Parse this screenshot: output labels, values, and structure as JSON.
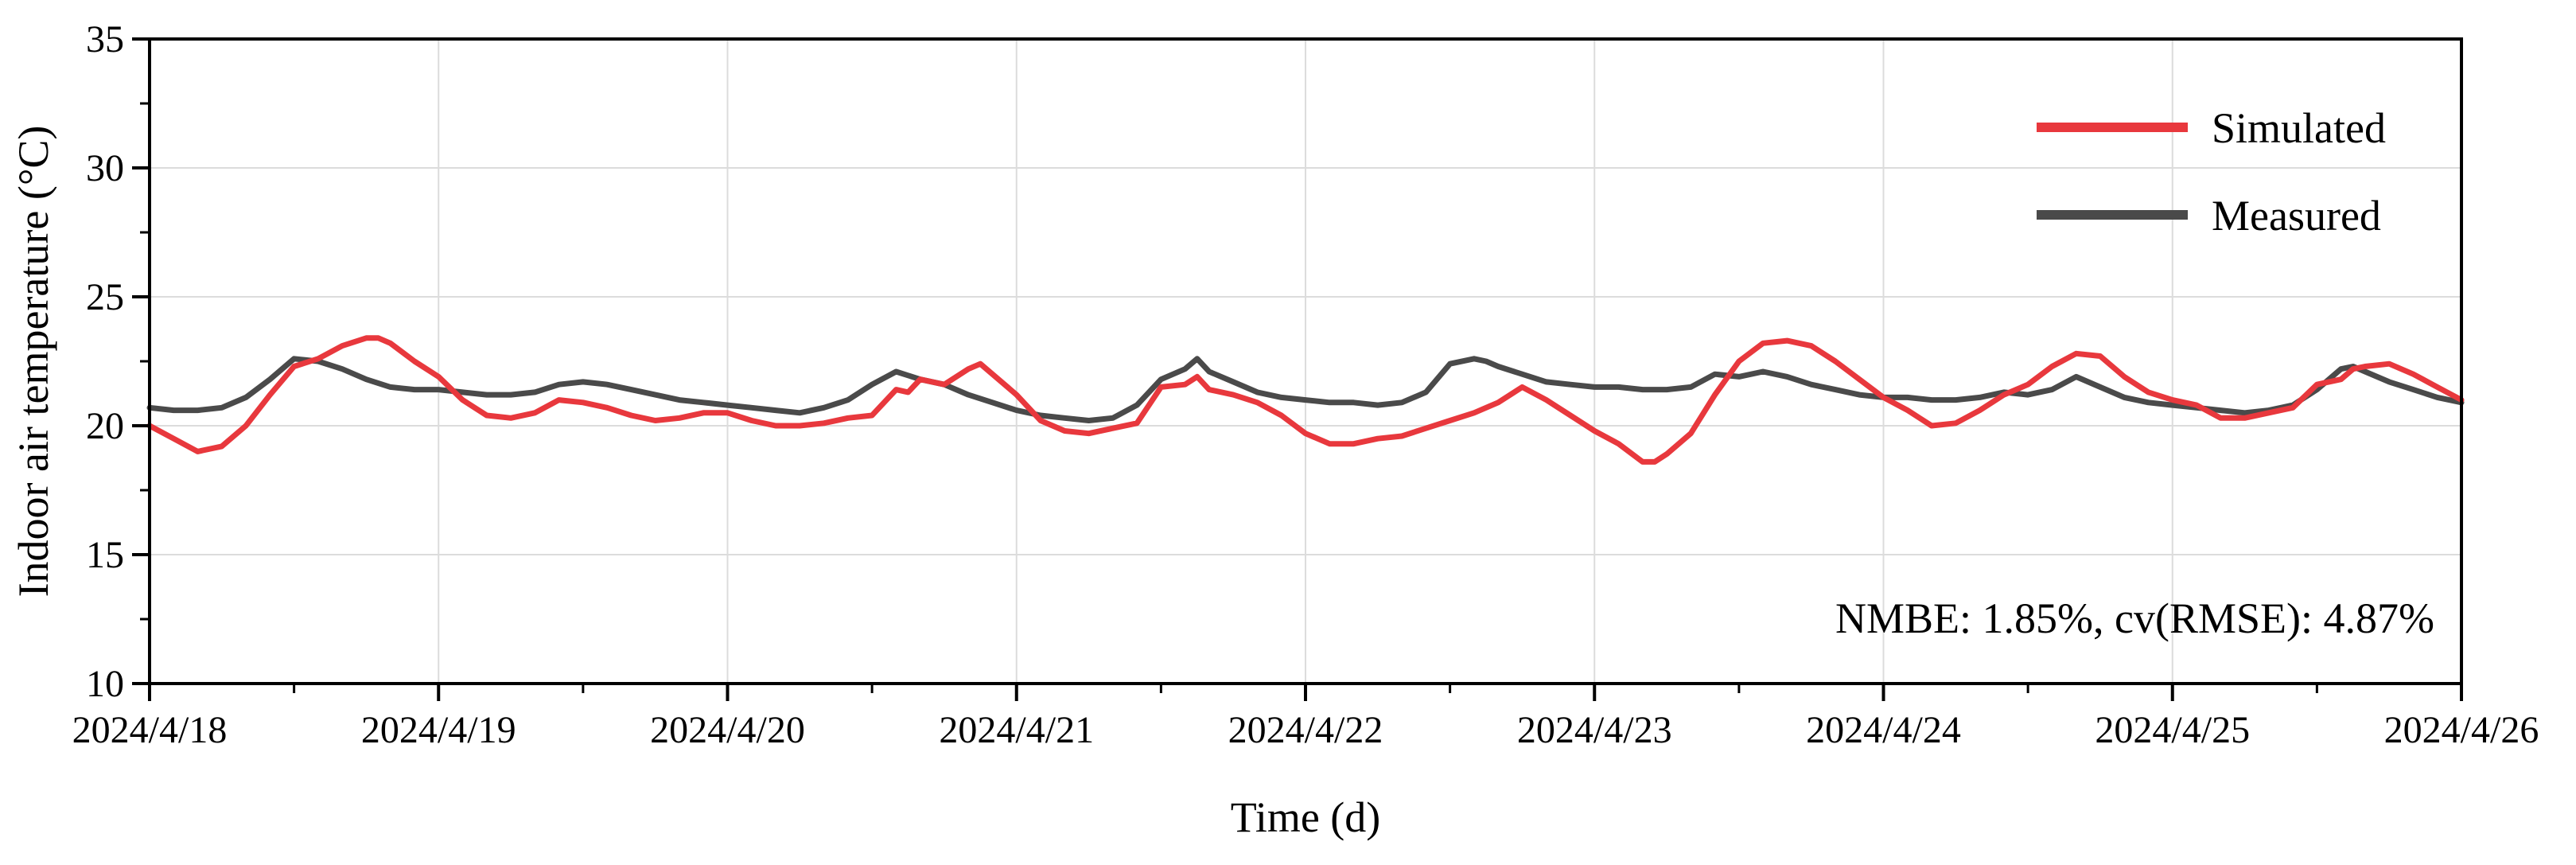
{
  "chart_data": {
    "type": "line",
    "title": "",
    "xlabel": "Time (d)",
    "ylabel": "Indoor air temperature (°C)",
    "xlim": [
      "2024/4/18",
      "2024/4/26"
    ],
    "ylim": [
      10,
      35
    ],
    "x_ticks": [
      "2024/4/18",
      "2024/4/19",
      "2024/4/20",
      "2024/4/21",
      "2024/4/22",
      "2024/4/23",
      "2024/4/24",
      "2024/4/25",
      "2024/4/26"
    ],
    "y_ticks": [
      10,
      15,
      20,
      25,
      30,
      35
    ],
    "grid": true,
    "legend_position": "top-right",
    "annotation": "NMBE: 1.85%, cv(RMSE): 4.87%",
    "series": [
      {
        "name": "Simulated",
        "color": "#e8383d",
        "points": [
          [
            "2024/4/18 00:00",
            20.0
          ],
          [
            "2024/4/18 02:00",
            19.5
          ],
          [
            "2024/4/18 04:00",
            19.0
          ],
          [
            "2024/4/18 06:00",
            19.2
          ],
          [
            "2024/4/18 08:00",
            20.0
          ],
          [
            "2024/4/18 10:00",
            21.2
          ],
          [
            "2024/4/18 12:00",
            22.3
          ],
          [
            "2024/4/18 14:00",
            22.6
          ],
          [
            "2024/4/18 16:00",
            23.1
          ],
          [
            "2024/4/18 18:00",
            23.4
          ],
          [
            "2024/4/18 19:00",
            23.4
          ],
          [
            "2024/4/18 20:00",
            23.2
          ],
          [
            "2024/4/18 22:00",
            22.5
          ],
          [
            "2024/4/19 00:00",
            21.9
          ],
          [
            "2024/4/19 02:00",
            21.0
          ],
          [
            "2024/4/19 04:00",
            20.4
          ],
          [
            "2024/4/19 06:00",
            20.3
          ],
          [
            "2024/4/19 08:00",
            20.5
          ],
          [
            "2024/4/19 10:00",
            21.0
          ],
          [
            "2024/4/19 12:00",
            20.9
          ],
          [
            "2024/4/19 14:00",
            20.7
          ],
          [
            "2024/4/19 16:00",
            20.4
          ],
          [
            "2024/4/19 18:00",
            20.2
          ],
          [
            "2024/4/19 20:00",
            20.3
          ],
          [
            "2024/4/19 22:00",
            20.5
          ],
          [
            "2024/4/20 00:00",
            20.5
          ],
          [
            "2024/4/20 02:00",
            20.2
          ],
          [
            "2024/4/20 04:00",
            20.0
          ],
          [
            "2024/4/20 06:00",
            20.0
          ],
          [
            "2024/4/20 08:00",
            20.1
          ],
          [
            "2024/4/20 10:00",
            20.3
          ],
          [
            "2024/4/20 12:00",
            20.4
          ],
          [
            "2024/4/20 14:00",
            21.4
          ],
          [
            "2024/4/20 15:00",
            21.3
          ],
          [
            "2024/4/20 16:00",
            21.8
          ],
          [
            "2024/4/20 18:00",
            21.6
          ],
          [
            "2024/4/20 20:00",
            22.2
          ],
          [
            "2024/4/20 21:00",
            22.4
          ],
          [
            "2024/4/20 22:00",
            22.0
          ],
          [
            "2024/4/21 00:00",
            21.2
          ],
          [
            "2024/4/21 02:00",
            20.2
          ],
          [
            "2024/4/21 04:00",
            19.8
          ],
          [
            "2024/4/21 06:00",
            19.7
          ],
          [
            "2024/4/21 08:00",
            19.9
          ],
          [
            "2024/4/21 10:00",
            20.1
          ],
          [
            "2024/4/21 12:00",
            21.5
          ],
          [
            "2024/4/21 14:00",
            21.6
          ],
          [
            "2024/4/21 15:00",
            21.9
          ],
          [
            "2024/4/21 16:00",
            21.4
          ],
          [
            "2024/4/21 18:00",
            21.2
          ],
          [
            "2024/4/21 20:00",
            20.9
          ],
          [
            "2024/4/21 22:00",
            20.4
          ],
          [
            "2024/4/22 00:00",
            19.7
          ],
          [
            "2024/4/22 02:00",
            19.3
          ],
          [
            "2024/4/22 04:00",
            19.3
          ],
          [
            "2024/4/22 06:00",
            19.5
          ],
          [
            "2024/4/22 08:00",
            19.6
          ],
          [
            "2024/4/22 10:00",
            19.9
          ],
          [
            "2024/4/22 12:00",
            20.2
          ],
          [
            "2024/4/22 14:00",
            20.5
          ],
          [
            "2024/4/22 16:00",
            20.9
          ],
          [
            "2024/4/22 18:00",
            21.5
          ],
          [
            "2024/4/22 20:00",
            21.0
          ],
          [
            "2024/4/22 22:00",
            20.4
          ],
          [
            "2024/4/23 00:00",
            19.8
          ],
          [
            "2024/4/23 02:00",
            19.3
          ],
          [
            "2024/4/23 04:00",
            18.6
          ],
          [
            "2024/4/23 05:00",
            18.6
          ],
          [
            "2024/4/23 06:00",
            18.9
          ],
          [
            "2024/4/23 08:00",
            19.7
          ],
          [
            "2024/4/23 10:00",
            21.2
          ],
          [
            "2024/4/23 12:00",
            22.5
          ],
          [
            "2024/4/23 14:00",
            23.2
          ],
          [
            "2024/4/23 16:00",
            23.3
          ],
          [
            "2024/4/23 18:00",
            23.1
          ],
          [
            "2024/4/23 20:00",
            22.5
          ],
          [
            "2024/4/23 22:00",
            21.8
          ],
          [
            "2024/4/24 00:00",
            21.1
          ],
          [
            "2024/4/24 02:00",
            20.6
          ],
          [
            "2024/4/24 04:00",
            20.0
          ],
          [
            "2024/4/24 06:00",
            20.1
          ],
          [
            "2024/4/24 08:00",
            20.6
          ],
          [
            "2024/4/24 10:00",
            21.2
          ],
          [
            "2024/4/24 12:00",
            21.6
          ],
          [
            "2024/4/24 14:00",
            22.3
          ],
          [
            "2024/4/24 16:00",
            22.8
          ],
          [
            "2024/4/24 18:00",
            22.7
          ],
          [
            "2024/4/24 20:00",
            21.9
          ],
          [
            "2024/4/24 22:00",
            21.3
          ],
          [
            "2024/4/25 00:00",
            21.0
          ],
          [
            "2024/4/25 02:00",
            20.8
          ],
          [
            "2024/4/25 04:00",
            20.3
          ],
          [
            "2024/4/25 06:00",
            20.3
          ],
          [
            "2024/4/25 08:00",
            20.5
          ],
          [
            "2024/4/25 10:00",
            20.7
          ],
          [
            "2024/4/25 12:00",
            21.6
          ],
          [
            "2024/4/25 14:00",
            21.8
          ],
          [
            "2024/4/25 15:00",
            22.2
          ],
          [
            "2024/4/25 16:00",
            22.3
          ],
          [
            "2024/4/25 18:00",
            22.4
          ],
          [
            "2024/4/25 20:00",
            22.0
          ],
          [
            "2024/4/25 22:00",
            21.5
          ],
          [
            "2024/4/26 00:00",
            21.0
          ]
        ]
      },
      {
        "name": "Measured",
        "color": "#4a4a4a",
        "points": [
          [
            "2024/4/18 00:00",
            20.7
          ],
          [
            "2024/4/18 02:00",
            20.6
          ],
          [
            "2024/4/18 04:00",
            20.6
          ],
          [
            "2024/4/18 06:00",
            20.7
          ],
          [
            "2024/4/18 08:00",
            21.1
          ],
          [
            "2024/4/18 10:00",
            21.8
          ],
          [
            "2024/4/18 12:00",
            22.6
          ],
          [
            "2024/4/18 14:00",
            22.5
          ],
          [
            "2024/4/18 16:00",
            22.2
          ],
          [
            "2024/4/18 18:00",
            21.8
          ],
          [
            "2024/4/18 20:00",
            21.5
          ],
          [
            "2024/4/18 22:00",
            21.4
          ],
          [
            "2024/4/19 00:00",
            21.4
          ],
          [
            "2024/4/19 02:00",
            21.3
          ],
          [
            "2024/4/19 04:00",
            21.2
          ],
          [
            "2024/4/19 06:00",
            21.2
          ],
          [
            "2024/4/19 08:00",
            21.3
          ],
          [
            "2024/4/19 10:00",
            21.6
          ],
          [
            "2024/4/19 12:00",
            21.7
          ],
          [
            "2024/4/19 14:00",
            21.6
          ],
          [
            "2024/4/19 16:00",
            21.4
          ],
          [
            "2024/4/19 18:00",
            21.2
          ],
          [
            "2024/4/19 20:00",
            21.0
          ],
          [
            "2024/4/19 22:00",
            20.9
          ],
          [
            "2024/4/20 00:00",
            20.8
          ],
          [
            "2024/4/20 02:00",
            20.7
          ],
          [
            "2024/4/20 04:00",
            20.6
          ],
          [
            "2024/4/20 06:00",
            20.5
          ],
          [
            "2024/4/20 08:00",
            20.7
          ],
          [
            "2024/4/20 10:00",
            21.0
          ],
          [
            "2024/4/20 12:00",
            21.6
          ],
          [
            "2024/4/20 14:00",
            22.1
          ],
          [
            "2024/4/20 16:00",
            21.8
          ],
          [
            "2024/4/20 18:00",
            21.6
          ],
          [
            "2024/4/20 20:00",
            21.2
          ],
          [
            "2024/4/20 22:00",
            20.9
          ],
          [
            "2024/4/21 00:00",
            20.6
          ],
          [
            "2024/4/21 02:00",
            20.4
          ],
          [
            "2024/4/21 04:00",
            20.3
          ],
          [
            "2024/4/21 06:00",
            20.2
          ],
          [
            "2024/4/21 08:00",
            20.3
          ],
          [
            "2024/4/21 10:00",
            20.8
          ],
          [
            "2024/4/21 12:00",
            21.8
          ],
          [
            "2024/4/21 14:00",
            22.2
          ],
          [
            "2024/4/21 15:00",
            22.6
          ],
          [
            "2024/4/21 16:00",
            22.1
          ],
          [
            "2024/4/21 18:00",
            21.7
          ],
          [
            "2024/4/21 20:00",
            21.3
          ],
          [
            "2024/4/21 22:00",
            21.1
          ],
          [
            "2024/4/22 00:00",
            21.0
          ],
          [
            "2024/4/22 02:00",
            20.9
          ],
          [
            "2024/4/22 04:00",
            20.9
          ],
          [
            "2024/4/22 06:00",
            20.8
          ],
          [
            "2024/4/22 08:00",
            20.9
          ],
          [
            "2024/4/22 10:00",
            21.3
          ],
          [
            "2024/4/22 12:00",
            22.4
          ],
          [
            "2024/4/22 14:00",
            22.6
          ],
          [
            "2024/4/22 15:00",
            22.5
          ],
          [
            "2024/4/22 16:00",
            22.3
          ],
          [
            "2024/4/22 18:00",
            22.0
          ],
          [
            "2024/4/22 20:00",
            21.7
          ],
          [
            "2024/4/22 22:00",
            21.6
          ],
          [
            "2024/4/23 00:00",
            21.5
          ],
          [
            "2024/4/23 02:00",
            21.5
          ],
          [
            "2024/4/23 04:00",
            21.4
          ],
          [
            "2024/4/23 06:00",
            21.4
          ],
          [
            "2024/4/23 08:00",
            21.5
          ],
          [
            "2024/4/23 10:00",
            22.0
          ],
          [
            "2024/4/23 12:00",
            21.9
          ],
          [
            "2024/4/23 14:00",
            22.1
          ],
          [
            "2024/4/23 16:00",
            21.9
          ],
          [
            "2024/4/23 18:00",
            21.6
          ],
          [
            "2024/4/23 20:00",
            21.4
          ],
          [
            "2024/4/23 22:00",
            21.2
          ],
          [
            "2024/4/24 00:00",
            21.1
          ],
          [
            "2024/4/24 02:00",
            21.1
          ],
          [
            "2024/4/24 04:00",
            21.0
          ],
          [
            "2024/4/24 06:00",
            21.0
          ],
          [
            "2024/4/24 08:00",
            21.1
          ],
          [
            "2024/4/24 10:00",
            21.3
          ],
          [
            "2024/4/24 12:00",
            21.2
          ],
          [
            "2024/4/24 14:00",
            21.4
          ],
          [
            "2024/4/24 16:00",
            21.9
          ],
          [
            "2024/4/24 18:00",
            21.5
          ],
          [
            "2024/4/24 20:00",
            21.1
          ],
          [
            "2024/4/24 22:00",
            20.9
          ],
          [
            "2024/4/25 00:00",
            20.8
          ],
          [
            "2024/4/25 02:00",
            20.7
          ],
          [
            "2024/4/25 04:00",
            20.6
          ],
          [
            "2024/4/25 06:00",
            20.5
          ],
          [
            "2024/4/25 08:00",
            20.6
          ],
          [
            "2024/4/25 10:00",
            20.8
          ],
          [
            "2024/4/25 12:00",
            21.4
          ],
          [
            "2024/4/25 14:00",
            22.2
          ],
          [
            "2024/4/25 15:00",
            22.3
          ],
          [
            "2024/4/25 16:00",
            22.1
          ],
          [
            "2024/4/25 18:00",
            21.7
          ],
          [
            "2024/4/25 20:00",
            21.4
          ],
          [
            "2024/4/25 22:00",
            21.1
          ],
          [
            "2024/4/26 00:00",
            20.9
          ]
        ]
      }
    ]
  }
}
